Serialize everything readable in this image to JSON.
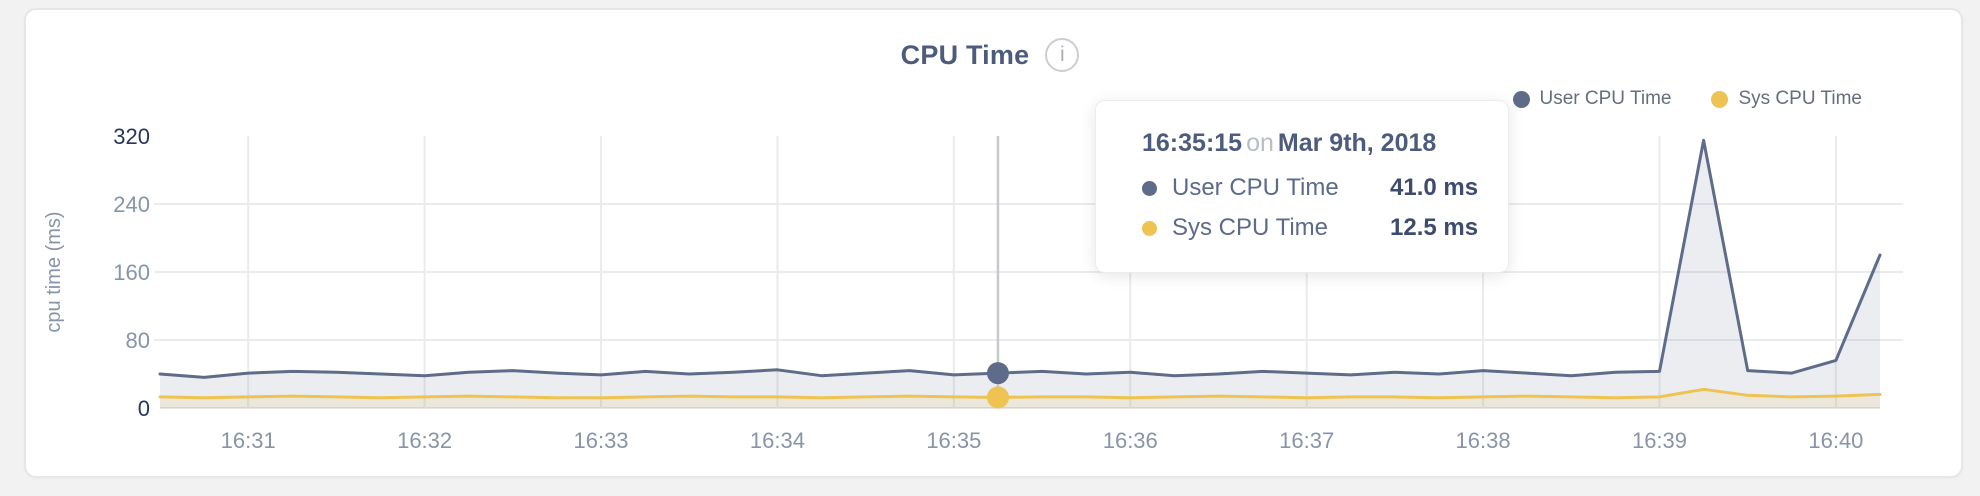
{
  "panel": {
    "title": "CPU Time",
    "info_icon_glyph": "i"
  },
  "tooltip": {
    "time": "16:35:15",
    "connector": "on",
    "date": "Mar 9th, 2018",
    "rows": [
      {
        "label": "User CPU Time",
        "value": "41.0 ms"
      },
      {
        "label": "Sys CPU Time",
        "value": "12.5 ms"
      }
    ]
  },
  "chart_data": {
    "type": "line",
    "title": "CPU Time",
    "xlabel": "",
    "ylabel": "cpu time (ms)",
    "ylim": [
      0,
      320
    ],
    "yticks": [
      0,
      80,
      160,
      240,
      320
    ],
    "emphasized_yticks": [
      0,
      320
    ],
    "grid": true,
    "legend_position": "top-right",
    "x_times": [
      "16:30:30",
      "16:30:45",
      "16:31:00",
      "16:31:15",
      "16:31:30",
      "16:31:45",
      "16:32:00",
      "16:32:15",
      "16:32:30",
      "16:32:45",
      "16:33:00",
      "16:33:15",
      "16:33:30",
      "16:33:45",
      "16:34:00",
      "16:34:15",
      "16:34:30",
      "16:34:45",
      "16:35:00",
      "16:35:15",
      "16:35:30",
      "16:35:45",
      "16:36:00",
      "16:36:15",
      "16:36:30",
      "16:36:45",
      "16:37:00",
      "16:37:15",
      "16:37:30",
      "16:37:45",
      "16:38:00",
      "16:38:15",
      "16:38:30",
      "16:38:45",
      "16:39:00",
      "16:39:15",
      "16:39:30",
      "16:39:45",
      "16:40:00",
      "16:40:15"
    ],
    "xticks": [
      "16:31",
      "16:32",
      "16:33",
      "16:34",
      "16:35",
      "16:36",
      "16:37",
      "16:38",
      "16:39",
      "16:40"
    ],
    "series": [
      {
        "name": "User CPU Time",
        "color": "#5e6c8a",
        "values": [
          40,
          36,
          41,
          43,
          42,
          40,
          38,
          42,
          44,
          41,
          39,
          43,
          40,
          42,
          45,
          38,
          41,
          44,
          39,
          41,
          43,
          40,
          42,
          38,
          40,
          43,
          41,
          39,
          42,
          40,
          44,
          41,
          38,
          42,
          43,
          315,
          44,
          41,
          56,
          180
        ]
      },
      {
        "name": "Sys CPU Time",
        "color": "#eec351",
        "values": [
          13,
          12,
          13,
          14,
          13,
          12,
          13,
          14,
          13,
          12,
          12,
          13,
          14,
          13,
          13,
          12,
          13,
          14,
          13,
          12.5,
          13,
          13,
          12,
          13,
          14,
          13,
          12,
          13,
          13,
          12,
          13,
          14,
          13,
          12,
          13,
          22,
          15,
          13,
          14,
          16
        ]
      }
    ],
    "highlight": {
      "time": "16:35:15",
      "values": [
        41.0,
        12.5
      ]
    },
    "colors": {
      "grid": "#eaebed",
      "baseline": "#e8e6e1",
      "crosshair": "#c5c8cd",
      "tick_label": "#8894a9",
      "tick_label_emphasis": "#27365a"
    }
  }
}
